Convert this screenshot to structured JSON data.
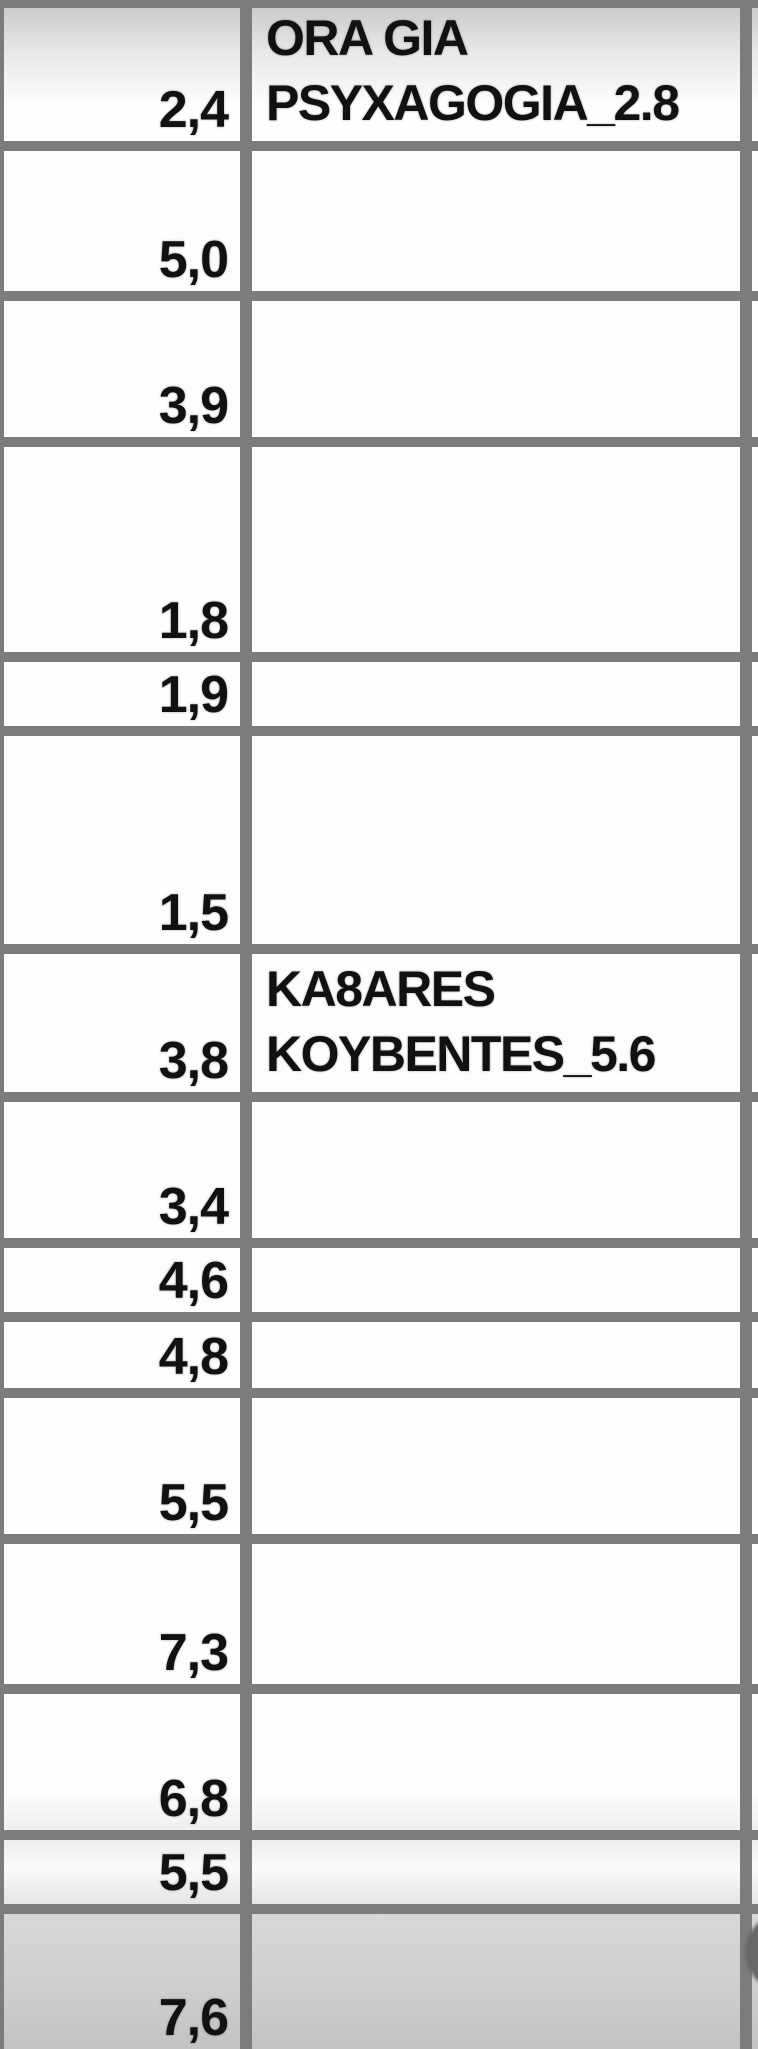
{
  "colors": {
    "gridline": "#7c7c7c",
    "cell_background": "#fdfdfd",
    "top_row_gradient_top": "#cbcbcb",
    "bottom_row_gradient_top": "#d8d8d8",
    "bottom_row_gradient_bottom": "#c3c3c3",
    "edge_circle": "#686868",
    "text": "#111111"
  },
  "table": {
    "columns": [
      "values",
      "labels"
    ],
    "rows": [
      {
        "value": "2,4",
        "label_line1": "ORA GIA",
        "label_line2": "PSYXAGOGIA_2.8"
      },
      {
        "value": "5,0"
      },
      {
        "value": "3,9"
      },
      {
        "value": "1,8"
      },
      {
        "value": "1,9"
      },
      {
        "value": "1,5"
      },
      {
        "value": "3,8",
        "label_line1": "KA8ARES",
        "label_line2": "KOYBENTES_5.6"
      },
      {
        "value": "3,4"
      },
      {
        "value": "4,6"
      },
      {
        "value": "4,8"
      },
      {
        "value": "5,5"
      },
      {
        "value": "7,3"
      },
      {
        "value": "6,8"
      },
      {
        "value": "5,5"
      },
      {
        "value": "7,6"
      }
    ]
  }
}
